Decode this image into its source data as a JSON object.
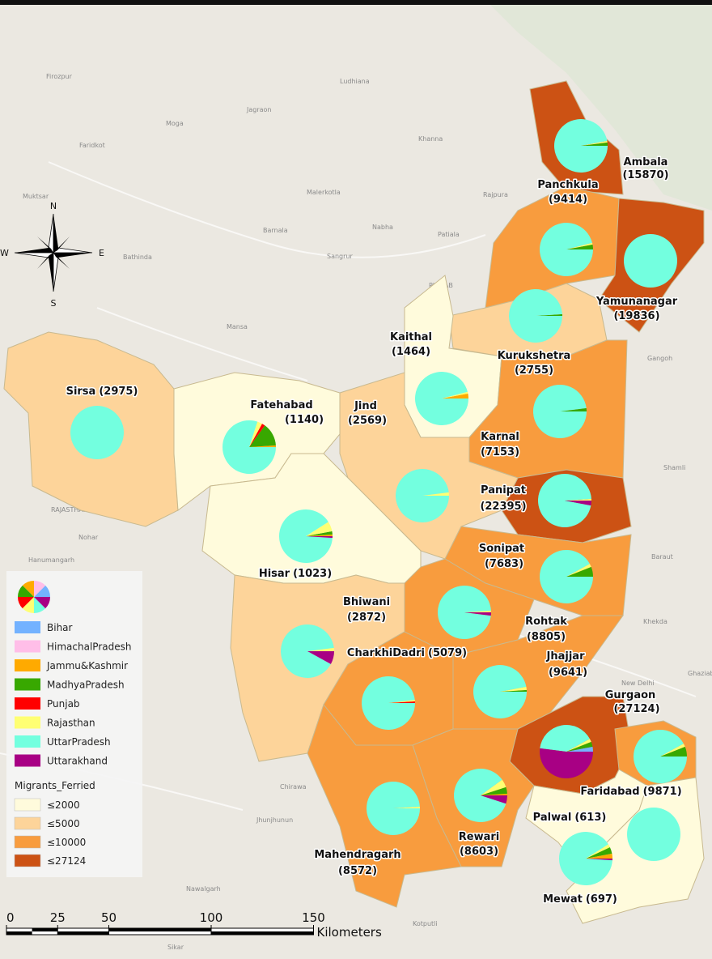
{
  "districts": [
    {
      "name": "Ambala",
      "migrants": 15870,
      "migrants_label": "(15870)",
      "shares": [
        0,
        0,
        0,
        2,
        0,
        1,
        97,
        0
      ]
    },
    {
      "name": "Panchkula",
      "migrants": 9414,
      "migrants_label": "(9414)",
      "shares": [
        0,
        0,
        0,
        3,
        0,
        1,
        96,
        0
      ]
    },
    {
      "name": "Yamunanagar",
      "migrants": 19836,
      "migrants_label": "(19836)",
      "shares": [
        0,
        0,
        0,
        0,
        0,
        0,
        100,
        0
      ]
    },
    {
      "name": "Kurukshetra",
      "migrants": 2755,
      "migrants_label": "(2755)",
      "shares": [
        0,
        0,
        0,
        1,
        0,
        0,
        99,
        0
      ]
    },
    {
      "name": "Kaithal",
      "migrants": 1464,
      "migrants_label": "(1464)",
      "shares": [
        0,
        0,
        3,
        0,
        0,
        1,
        96,
        0
      ]
    },
    {
      "name": "Karnal",
      "migrants": 7153,
      "migrants_label": "(7153)",
      "shares": [
        0,
        0,
        0,
        2,
        0,
        0,
        98,
        0
      ]
    },
    {
      "name": "Panipat",
      "migrants": 22395,
      "migrants_label": "(22395)",
      "shares": [
        0,
        0,
        0,
        0,
        0,
        1,
        96,
        3
      ]
    },
    {
      "name": "Sirsa",
      "migrants": 2975,
      "migrants_label": "(2975)",
      "shares": [
        0,
        0,
        0,
        0,
        0,
        0,
        100,
        0
      ]
    },
    {
      "name": "Fatehabad",
      "migrants": 1140,
      "migrants_label": "(1140)",
      "shares": [
        0,
        0,
        1,
        14,
        2,
        3,
        80,
        0
      ]
    },
    {
      "name": "Jind",
      "migrants": 2569,
      "migrants_label": "(2569)",
      "shares": [
        0,
        0,
        0,
        0,
        0,
        2,
        98,
        0
      ]
    },
    {
      "name": "Hisar",
      "migrants": 1023,
      "migrants_label": "(1023)",
      "shares": [
        0,
        0,
        1,
        2,
        0,
        6,
        90,
        1
      ]
    },
    {
      "name": "Sonipat",
      "migrants": 7683,
      "migrants_label": "(7683)",
      "shares": [
        0,
        0,
        0,
        6,
        0,
        2,
        92,
        0
      ]
    },
    {
      "name": "Bhiwani",
      "migrants": 2872,
      "migrants_label": "(2872)",
      "shares": [
        0,
        0,
        0,
        0,
        0,
        2,
        90,
        8
      ]
    },
    {
      "name": "Rohtak",
      "migrants": 8805,
      "migrants_label": "(8805)",
      "shares": [
        0,
        0,
        0,
        0,
        0,
        1,
        97,
        2
      ]
    },
    {
      "name": "CharkhiDadri",
      "migrants": 5079,
      "migrants_label": "(5079)",
      "shares": [
        0,
        0,
        0,
        0,
        1,
        1,
        98,
        0
      ]
    },
    {
      "name": "Jhajjar",
      "migrants": 9641,
      "migrants_label": "(9641)",
      "shares": [
        0,
        0,
        0,
        1,
        0,
        2,
        97,
        0
      ]
    },
    {
      "name": "Gurgaon",
      "migrants": 27124,
      "migrants_label": "(27124)",
      "shares": [
        3,
        0,
        0,
        3,
        0,
        2,
        40,
        52
      ]
    },
    {
      "name": "Faridabad",
      "migrants": 9871,
      "migrants_label": "(9871)",
      "shares": [
        0,
        0,
        0,
        6,
        0,
        2,
        92,
        0
      ]
    },
    {
      "name": "Rewari",
      "migrants": 8603,
      "migrants_label": "(8603)",
      "shares": [
        0,
        0,
        1,
        4,
        0,
        5,
        85,
        5
      ]
    },
    {
      "name": "Palwal",
      "migrants": 613,
      "migrants_label": "(613)",
      "shares": [
        0,
        0,
        3,
        4,
        0,
        2,
        90,
        1
      ]
    },
    {
      "name": "Mahendragarh",
      "migrants": 8572,
      "migrants_label": "(8572)",
      "shares": [
        0,
        0,
        0,
        0,
        0,
        1,
        99,
        0
      ]
    },
    {
      "name": "Mewat",
      "migrants": 697,
      "migrants_label": "(697)",
      "shares": [
        0,
        0,
        0,
        0,
        0,
        0,
        100,
        0
      ]
    }
  ],
  "legend": {
    "states": [
      {
        "name": "Bihar",
        "color": "#73b2ff"
      },
      {
        "name": "HimachalPradesh",
        "color": "#ffbee8"
      },
      {
        "name": "Jammu&Kashmir",
        "color": "#ffaa00"
      },
      {
        "name": "MadhyaPradesh",
        "color": "#38a800"
      },
      {
        "name": "Punjab",
        "color": "#ff0000"
      },
      {
        "name": "Rajasthan",
        "color": "#ffff73"
      },
      {
        "name": "UttarPradesh",
        "color": "#73ffdf"
      },
      {
        "name": "Uttarakhand",
        "color": "#a80084"
      }
    ],
    "classes_title": "Migrants_Ferried",
    "classes": [
      {
        "label": "≤2000",
        "max": 2000,
        "color": "#fffbdc"
      },
      {
        "label": "≤5000",
        "max": 5000,
        "color": "#fdd49a"
      },
      {
        "label": "≤10000",
        "max": 10000,
        "color": "#f89c3e"
      },
      {
        "label": "≤27124",
        "max": 27124,
        "color": "#cc5214"
      }
    ]
  },
  "scale_bar": {
    "ticks": [
      0,
      25,
      50,
      100,
      150
    ],
    "unit": "Kilometers"
  },
  "compass": {
    "north": "N",
    "south": "S",
    "east": "E",
    "west": "W"
  },
  "basemap_labels": [
    "Firozpur",
    "Faridkot",
    "Ludhiana",
    "Jagraon",
    "Moga",
    "Khanna",
    "Malerkotla",
    "Barnala",
    "Sangrur",
    "Nabha",
    "Patiala",
    "Rajpura",
    "Muktsar",
    "Bathinda",
    "Mansa",
    "PUNJAB",
    "RAJASTHAN",
    "Hanumangarh",
    "Nohar",
    "Chirawa",
    "Jhunjhunun",
    "Nawalgarh",
    "Sikar",
    "Kotputli",
    "Gangoh",
    "Shamli",
    "Baraut",
    "Khekda",
    "New Delhi",
    "Ghaziabad"
  ]
}
